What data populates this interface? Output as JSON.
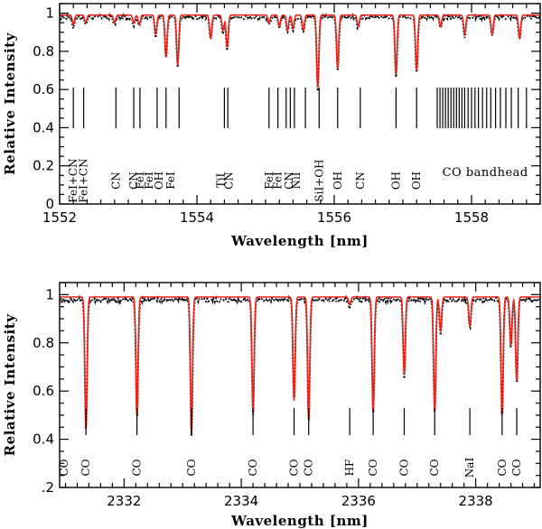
{
  "chart_data": [
    {
      "type": "line",
      "xlabel": "Wavelength [nm]",
      "ylabel": "Relative Intensity",
      "xlim": [
        1552.0,
        1559.0
      ],
      "ylim": [
        0.0,
        1.05
      ],
      "x_ticks": [
        1552,
        1554,
        1556,
        1558
      ],
      "y_ticks": [
        0,
        0.2,
        0.4,
        0.6,
        0.8,
        1
      ],
      "y_tick_labels": [
        "0",
        "0.2",
        "0.4",
        "0.6",
        "0.8",
        "1"
      ],
      "continuum": 0.99,
      "series": [
        {
          "style": "dotted",
          "color": "#000000"
        },
        {
          "style": "solid",
          "color": "#e8241c"
        }
      ],
      "absorption_lines": [
        {
          "x": 1552.2,
          "depth": 0.05
        },
        {
          "x": 1552.38,
          "depth": 0.04
        },
        {
          "x": 1552.8,
          "depth": 0.04
        },
        {
          "x": 1553.08,
          "depth": 0.04
        },
        {
          "x": 1553.16,
          "depth": 0.05
        },
        {
          "x": 1553.4,
          "depth": 0.1
        },
        {
          "x": 1553.55,
          "depth": 0.22
        },
        {
          "x": 1553.72,
          "depth": 0.26
        },
        {
          "x": 1554.2,
          "depth": 0.12
        },
        {
          "x": 1554.38,
          "depth": 0.08
        },
        {
          "x": 1554.44,
          "depth": 0.17
        },
        {
          "x": 1555.05,
          "depth": 0.04
        },
        {
          "x": 1555.2,
          "depth": 0.06
        },
        {
          "x": 1555.32,
          "depth": 0.08
        },
        {
          "x": 1555.4,
          "depth": 0.07
        },
        {
          "x": 1555.55,
          "depth": 0.08
        },
        {
          "x": 1555.76,
          "depth": 0.38
        },
        {
          "x": 1556.05,
          "depth": 0.28
        },
        {
          "x": 1556.35,
          "depth": 0.06
        },
        {
          "x": 1556.9,
          "depth": 0.31
        },
        {
          "x": 1557.2,
          "depth": 0.29
        },
        {
          "x": 1557.55,
          "depth": 0.06
        },
        {
          "x": 1557.9,
          "depth": 0.1
        },
        {
          "x": 1558.3,
          "depth": 0.1
        },
        {
          "x": 1558.7,
          "depth": 0.12
        }
      ],
      "line_markers": [
        1552.2,
        1552.35,
        1552.82,
        1553.08,
        1553.17,
        1553.42,
        1553.55,
        1553.74,
        1554.4,
        1554.45,
        1555.05,
        1555.18,
        1555.3,
        1555.36,
        1555.42,
        1555.58,
        1555.78,
        1556.05,
        1556.38,
        1556.9,
        1557.2,
        1557.5,
        1557.54,
        1557.58,
        1557.62,
        1557.66,
        1557.7,
        1557.74,
        1557.78,
        1557.82,
        1557.86,
        1557.9,
        1557.95,
        1558.0,
        1558.05,
        1558.1,
        1558.16,
        1558.22,
        1558.28,
        1558.35,
        1558.42,
        1558.5,
        1558.58,
        1558.68,
        1558.8
      ],
      "line_labels": [
        {
          "x": 1552.2,
          "text": "FeI+CN"
        },
        {
          "x": 1552.35,
          "text": "FeI+CN"
        },
        {
          "x": 1552.82,
          "text": "CN"
        },
        {
          "x": 1553.08,
          "text": "CN"
        },
        {
          "x": 1553.17,
          "text": "FeI"
        },
        {
          "x": 1553.3,
          "text": "FeI"
        },
        {
          "x": 1553.45,
          "text": "OH"
        },
        {
          "x": 1553.62,
          "text": "FeI"
        },
        {
          "x": 1554.35,
          "text": "TiI"
        },
        {
          "x": 1554.47,
          "text": "CN"
        },
        {
          "x": 1555.05,
          "text": "FeI"
        },
        {
          "x": 1555.18,
          "text": "FeI"
        },
        {
          "x": 1555.34,
          "text": "CN"
        },
        {
          "x": 1555.45,
          "text": "NiI"
        },
        {
          "x": 1555.78,
          "text": "SiI+OH"
        },
        {
          "x": 1556.05,
          "text": "OH"
        },
        {
          "x": 1556.38,
          "text": "CN"
        },
        {
          "x": 1556.9,
          "text": "OH"
        },
        {
          "x": 1557.2,
          "text": "OH"
        }
      ],
      "band_label": {
        "x": 1558.2,
        "text": "CO bandhead"
      }
    },
    {
      "type": "line",
      "xlabel": "Wavelength [nm]",
      "ylabel": "Relative Intensity",
      "xlim": [
        2330.9,
        2339.1
      ],
      "ylim": [
        0.2,
        1.05
      ],
      "x_ticks": [
        2332,
        2334,
        2336,
        2338
      ],
      "y_ticks": [
        0.2,
        0.4,
        0.6,
        0.8,
        1
      ],
      "y_tick_labels": [
        ".2",
        "0.4",
        "0.6",
        "0.8",
        "1"
      ],
      "continuum": 0.99,
      "series": [
        {
          "style": "dotted",
          "color": "#000000"
        },
        {
          "style": "solid",
          "color": "#e8241c"
        }
      ],
      "absorption_lines": [
        {
          "x": 2331.35,
          "depth": 0.55
        },
        {
          "x": 2332.22,
          "depth": 0.49
        },
        {
          "x": 2333.15,
          "depth": 0.56
        },
        {
          "x": 2334.2,
          "depth": 0.48
        },
        {
          "x": 2334.9,
          "depth": 0.43
        },
        {
          "x": 2335.15,
          "depth": 0.51
        },
        {
          "x": 2335.85,
          "depth": 0.03
        },
        {
          "x": 2336.25,
          "depth": 0.48
        },
        {
          "x": 2336.78,
          "depth": 0.32
        },
        {
          "x": 2337.3,
          "depth": 0.48
        },
        {
          "x": 2337.4,
          "depth": 0.14
        },
        {
          "x": 2337.9,
          "depth": 0.12
        },
        {
          "x": 2338.45,
          "depth": 0.49
        },
        {
          "x": 2338.6,
          "depth": 0.2
        },
        {
          "x": 2338.7,
          "depth": 0.35
        }
      ],
      "line_markers": [
        2331.35,
        2332.22,
        2333.15,
        2334.2,
        2334.9,
        2335.15,
        2335.85,
        2336.25,
        2336.78,
        2337.3,
        2337.9,
        2338.45,
        2338.7
      ],
      "line_labels": [
        {
          "x": 2330.98,
          "text": "CO"
        },
        {
          "x": 2331.35,
          "text": "CO"
        },
        {
          "x": 2332.22,
          "text": "CO"
        },
        {
          "x": 2333.15,
          "text": "CO"
        },
        {
          "x": 2334.2,
          "text": "CO"
        },
        {
          "x": 2334.9,
          "text": "CO"
        },
        {
          "x": 2335.15,
          "text": "CO"
        },
        {
          "x": 2335.85,
          "text": "HF"
        },
        {
          "x": 2336.25,
          "text": "CO"
        },
        {
          "x": 2336.78,
          "text": "CO"
        },
        {
          "x": 2337.3,
          "text": "CO"
        },
        {
          "x": 2337.9,
          "text": "NaI"
        },
        {
          "x": 2338.45,
          "text": "CO"
        },
        {
          "x": 2338.7,
          "text": "CO"
        }
      ]
    }
  ]
}
